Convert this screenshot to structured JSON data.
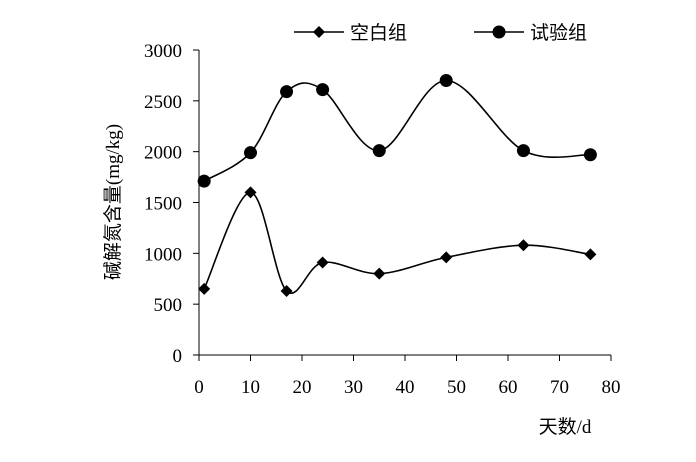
{
  "chart_data": {
    "type": "line",
    "title": "",
    "xlabel": "天数/d",
    "ylabel": "碱解氮含量(mg/kg)",
    "xlim": [
      0,
      80
    ],
    "ylim": [
      0,
      3000
    ],
    "x_ticks": [
      0,
      10,
      20,
      30,
      40,
      50,
      60,
      70,
      80
    ],
    "y_ticks": [
      0,
      500,
      1000,
      1500,
      2000,
      2500,
      3000
    ],
    "grid": false,
    "legend_position": "top",
    "smooth": true,
    "series": [
      {
        "name": "空白组",
        "marker": "diamond",
        "color": "#000000",
        "points": [
          [
            1,
            650
          ],
          [
            10,
            1600
          ],
          [
            17,
            630
          ],
          [
            24,
            910
          ],
          [
            35,
            800
          ],
          [
            48,
            960
          ],
          [
            63,
            1080
          ],
          [
            76,
            990
          ]
        ]
      },
      {
        "name": "试验组",
        "marker": "circle",
        "color": "#000000",
        "points": [
          [
            1,
            1710
          ],
          [
            10,
            1990
          ],
          [
            17,
            2590
          ],
          [
            24,
            2610
          ],
          [
            35,
            2010
          ],
          [
            48,
            2700
          ],
          [
            63,
            2010
          ],
          [
            76,
            1970
          ]
        ]
      }
    ]
  }
}
